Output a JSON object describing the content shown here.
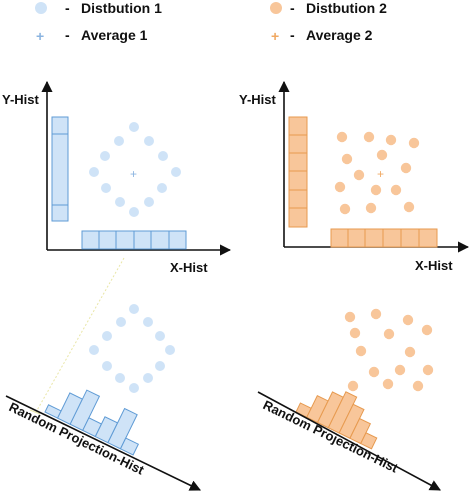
{
  "legend": {
    "dash": "-",
    "dist1": "Distbution 1",
    "avg1": "Average 1",
    "dist2": "Distbution 2",
    "avg2": "Average 2",
    "plus": "+"
  },
  "panels": {
    "top_left": {
      "y_label": "Y-Hist",
      "x_label": "X-Hist"
    },
    "top_right": {
      "y_label": "Y-Hist",
      "x_label": "X-Hist"
    },
    "bottom_left": {
      "proj_label": "Random Projection-Hist"
    },
    "bottom_right": {
      "proj_label": "Random Projection-Hist"
    }
  },
  "colors": {
    "blue_fill": "#cfe3f7",
    "blue_stroke": "#5f9bd5",
    "orange_fill": "#f8c69a",
    "orange_stroke": "#e79a4f",
    "guide_line": "#e9e6a6",
    "axis": "#111111"
  }
}
